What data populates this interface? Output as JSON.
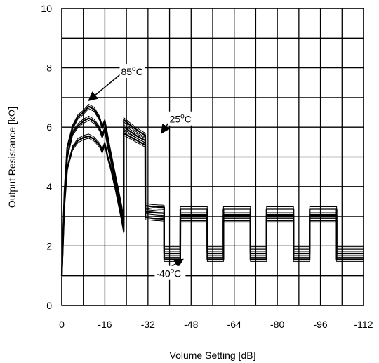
{
  "chart_data": {
    "type": "line",
    "title": "",
    "xlabel": "Volume Setting [dB]",
    "ylabel": "Output Resistance [kΩ]",
    "xlim": [
      0,
      -112
    ],
    "ylim": [
      0,
      10
    ],
    "grid": true,
    "x_grid_step": -8,
    "y_grid_step": 1,
    "x_ticks": [
      0,
      -16,
      -32,
      -48,
      -64,
      -80,
      -96,
      -112
    ],
    "x_tick_labels": [
      "0",
      "-16",
      "-32",
      "-48",
      "-64",
      "-80",
      "-96",
      "-112"
    ],
    "y_ticks": [
      0,
      2,
      4,
      6,
      8,
      10
    ],
    "y_tick_labels": [
      "0",
      "2",
      "4",
      "6",
      "8",
      "10"
    ],
    "series": [
      {
        "name": "85°C",
        "x": [
          0,
          -1,
          -2,
          -4,
          -6,
          -8,
          -10,
          -12,
          -14,
          -15,
          -16,
          -17,
          -18,
          -20,
          -22,
          -23,
          -23.01,
          -24,
          -25,
          -26,
          -27,
          -28,
          -29,
          -30,
          -31,
          -31.01,
          -32,
          -33,
          -34,
          -35,
          -36,
          -37,
          -38,
          -38.01,
          -40,
          -42,
          -44,
          -44.01,
          -46,
          -48,
          -50,
          -52,
          -54,
          -54.01,
          -56,
          -58,
          -60,
          -60.01,
          -62,
          -64,
          -66,
          -68,
          -70,
          -70.01,
          -72,
          -74,
          -76,
          -76.01,
          -78,
          -80,
          -82,
          -84,
          -86,
          -86.01,
          -88,
          -90,
          -92,
          -92.01,
          -94,
          -96,
          -98,
          -100,
          -102,
          -102.01,
          -104,
          -106,
          -108,
          -110,
          -112
        ],
        "y": [
          1.0,
          3.8,
          5.3,
          6.0,
          6.35,
          6.5,
          6.7,
          6.6,
          6.3,
          6.0,
          6.2,
          5.7,
          5.2,
          4.3,
          3.4,
          2.9,
          6.25,
          6.18,
          6.1,
          6.03,
          5.96,
          5.9,
          5.84,
          5.78,
          5.73,
          3.35,
          3.35,
          3.33,
          3.32,
          3.32,
          3.31,
          3.31,
          3.3,
          1.9,
          1.9,
          1.9,
          1.9,
          3.25,
          3.25,
          3.25,
          3.25,
          3.25,
          3.25,
          1.9,
          1.9,
          1.9,
          1.9,
          3.25,
          3.25,
          3.25,
          3.25,
          3.25,
          3.25,
          1.9,
          1.9,
          1.9,
          1.9,
          3.25,
          3.25,
          3.25,
          3.25,
          3.25,
          3.25,
          1.9,
          1.9,
          1.9,
          1.9,
          3.25,
          3.25,
          3.25,
          3.25,
          3.25,
          3.25,
          1.9,
          1.9,
          1.9,
          1.9,
          1.9,
          1.9
        ]
      },
      {
        "name": "25°C",
        "x": [
          0,
          -1,
          -2,
          -4,
          -6,
          -8,
          -10,
          -12,
          -14,
          -15,
          -16,
          -17,
          -18,
          -20,
          -22,
          -23,
          -23.01,
          -24,
          -25,
          -26,
          -27,
          -28,
          -29,
          -30,
          -31,
          -31.01,
          -32,
          -33,
          -34,
          -35,
          -36,
          -37,
          -38,
          -38.01,
          -40,
          -42,
          -44,
          -44.01,
          -46,
          -48,
          -50,
          -52,
          -54,
          -54.01,
          -56,
          -58,
          -60,
          -60.01,
          -62,
          -64,
          -66,
          -68,
          -70,
          -70.01,
          -72,
          -74,
          -76,
          -76.01,
          -78,
          -80,
          -82,
          -84,
          -86,
          -86.01,
          -88,
          -90,
          -92,
          -92.01,
          -94,
          -96,
          -98,
          -100,
          -102,
          -102.01,
          -104,
          -106,
          -108,
          -110,
          -112
        ],
        "y": [
          1.0,
          3.6,
          5.0,
          5.8,
          6.05,
          6.2,
          6.3,
          6.2,
          5.95,
          5.7,
          5.95,
          5.4,
          5.0,
          4.1,
          3.2,
          2.7,
          6.0,
          5.95,
          5.88,
          5.82,
          5.76,
          5.7,
          5.65,
          5.6,
          5.55,
          3.15,
          3.15,
          3.14,
          3.13,
          3.12,
          3.11,
          3.11,
          3.1,
          1.75,
          1.75,
          1.75,
          1.75,
          3.05,
          3.05,
          3.05,
          3.05,
          3.05,
          3.05,
          1.75,
          1.75,
          1.75,
          1.75,
          3.05,
          3.05,
          3.05,
          3.05,
          3.05,
          3.05,
          1.75,
          1.75,
          1.75,
          1.75,
          3.05,
          3.05,
          3.05,
          3.05,
          3.05,
          3.05,
          1.75,
          1.75,
          1.75,
          1.75,
          3.05,
          3.05,
          3.05,
          3.05,
          3.05,
          3.05,
          1.75,
          1.75,
          1.75,
          1.75,
          1.75,
          1.75
        ]
      },
      {
        "name": "-40°C",
        "x": [
          0,
          -1,
          -2,
          -4,
          -6,
          -8,
          -10,
          -12,
          -14,
          -15,
          -16,
          -17,
          -18,
          -20,
          -22,
          -23,
          -23.01,
          -24,
          -25,
          -26,
          -27,
          -28,
          -29,
          -30,
          -31,
          -31.01,
          -32,
          -33,
          -34,
          -35,
          -36,
          -37,
          -38,
          -38.01,
          -40,
          -42,
          -44,
          -44.01,
          -46,
          -48,
          -50,
          -52,
          -54,
          -54.01,
          -56,
          -58,
          -60,
          -60.01,
          -62,
          -64,
          -66,
          -68,
          -70,
          -70.01,
          -72,
          -74,
          -76,
          -76.01,
          -78,
          -80,
          -82,
          -84,
          -86,
          -86.01,
          -88,
          -90,
          -92,
          -92.01,
          -94,
          -96,
          -98,
          -100,
          -102,
          -102.01,
          -104,
          -106,
          -108,
          -110,
          -112
        ],
        "y": [
          1.0,
          3.4,
          4.6,
          5.3,
          5.55,
          5.65,
          5.7,
          5.6,
          5.4,
          5.2,
          5.45,
          5.0,
          4.7,
          3.9,
          3.0,
          2.5,
          5.8,
          5.75,
          5.7,
          5.65,
          5.6,
          5.55,
          5.5,
          5.45,
          5.4,
          2.95,
          2.95,
          2.94,
          2.93,
          2.92,
          2.92,
          2.91,
          2.9,
          1.55,
          1.55,
          1.55,
          1.55,
          2.85,
          2.85,
          2.85,
          2.85,
          2.85,
          2.85,
          1.55,
          1.55,
          1.55,
          1.55,
          2.85,
          2.85,
          2.85,
          2.85,
          2.85,
          2.85,
          1.55,
          1.55,
          1.55,
          1.55,
          2.85,
          2.85,
          2.85,
          2.85,
          2.85,
          2.85,
          1.55,
          1.55,
          1.55,
          1.55,
          2.85,
          2.85,
          2.85,
          2.85,
          2.85,
          2.85,
          1.55,
          1.55,
          1.55,
          1.55,
          1.55,
          1.55
        ]
      }
    ],
    "annotations": [
      {
        "text": "85",
        "sup": "o",
        "unit": "C",
        "point_x": -10,
        "point_y": 6.9,
        "label_x": -22,
        "label_y": 7.8
      },
      {
        "text": "25",
        "sup": "o",
        "unit": "C",
        "point_x": -37,
        "point_y": 5.8,
        "label_x": -40,
        "label_y": 6.2
      },
      {
        "text": "-40",
        "sup": "o",
        "unit": "C",
        "point_x": -45,
        "point_y": 1.55,
        "label_x": -35,
        "label_y": 1.0
      }
    ],
    "colors": {
      "line": "#000000",
      "grid": "#000000",
      "background": "#ffffff"
    }
  }
}
